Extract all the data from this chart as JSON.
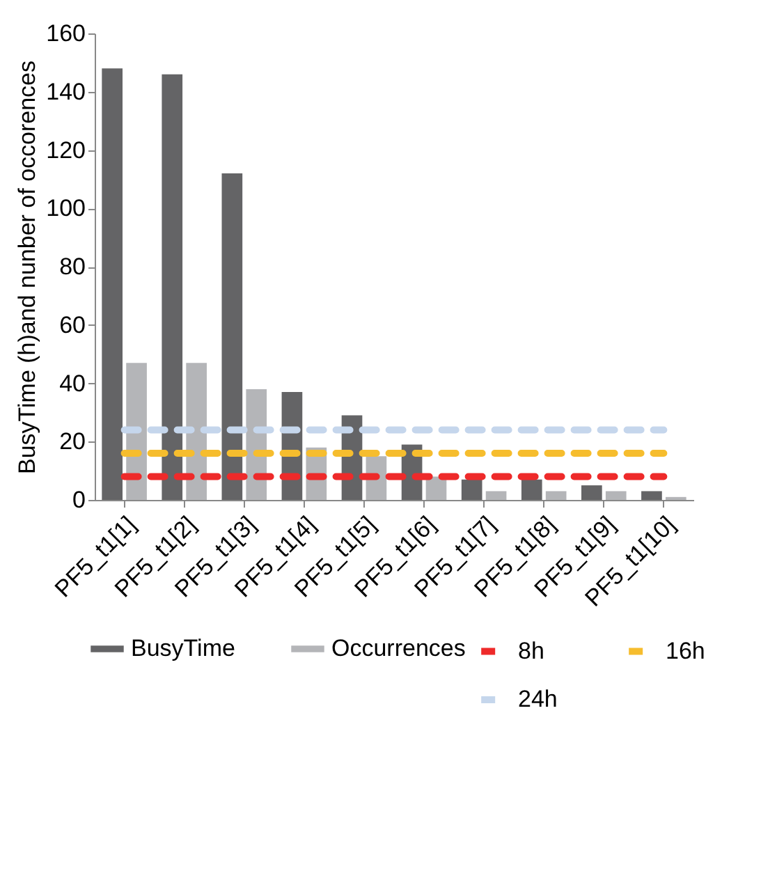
{
  "chart_data": {
    "type": "bar",
    "ylabel": "BusyTime (h)and nunber of occorences",
    "categories": [
      "PF5_t1[1]",
      "PF5_t1[2]",
      "PF5_t1[3]",
      "PF5_t1[4]",
      "PF5_t1[5]",
      "PF5_t1[6]",
      "PF5_t1[7]",
      "PF5_t1[8]",
      "PF5_t1[9]",
      "PF5_t1[10]"
    ],
    "series": [
      {
        "name": "BusyTime",
        "color": "#646466",
        "values": [
          148,
          146,
          112,
          37,
          29,
          19,
          7,
          7,
          5,
          3
        ]
      },
      {
        "name": "Occurrences",
        "color": "#b4b5b8",
        "values": [
          47,
          47,
          38,
          18,
          15,
          8,
          3,
          3,
          3,
          1
        ]
      },
      {
        "name": "8h",
        "type": "line",
        "line_style": "dashed",
        "color": "#ee2a2a",
        "values": [
          8,
          8,
          8,
          8,
          8,
          8,
          8,
          8,
          8,
          8
        ]
      },
      {
        "name": "16h",
        "type": "line",
        "line_style": "dashed",
        "color": "#f6bd2e",
        "values": [
          16,
          16,
          16,
          16,
          16,
          16,
          16,
          16,
          16,
          16
        ]
      },
      {
        "name": "24h",
        "type": "line",
        "line_style": "dashed",
        "color": "#c5d6ec",
        "values": [
          24,
          24,
          24,
          24,
          24,
          24,
          24,
          24,
          24,
          24
        ]
      }
    ],
    "ylim": [
      0,
      160
    ],
    "yticks": [
      0,
      20,
      40,
      60,
      80,
      100,
      120,
      140,
      160
    ],
    "grid": false,
    "legend": "bottom",
    "marker": "none"
  }
}
